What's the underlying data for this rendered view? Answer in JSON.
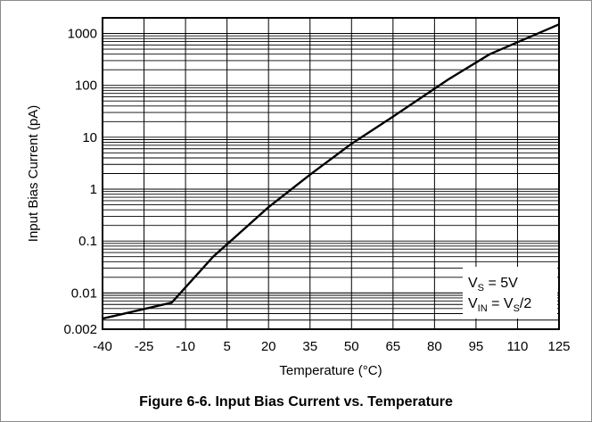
{
  "chart_data": {
    "type": "line",
    "title": "Figure 6-6. Input Bias Current vs. Temperature",
    "xlabel": "Temperature (°C)",
    "ylabel": "Input Bias Current (pA)",
    "xlim": [
      -40,
      125
    ],
    "ylim": [
      0.002,
      2000
    ],
    "y_scale": "log",
    "grid": true,
    "x_ticks": [
      -40,
      -25,
      -10,
      5,
      20,
      35,
      50,
      65,
      80,
      95,
      110,
      125
    ],
    "x_tick_labels": [
      "-40",
      "-25",
      "-10",
      "5",
      "20",
      "35",
      "50",
      "65",
      "80",
      "95",
      "110",
      "125"
    ],
    "y_ticks": [
      0.002,
      0.01,
      0.1,
      1,
      10,
      100,
      1000
    ],
    "y_tick_labels": [
      "0.002",
      "0.01",
      "0.1",
      "1",
      "10",
      "100",
      "1000"
    ],
    "series": [
      {
        "x": [
          -40,
          -15,
          0,
          20,
          35,
          50,
          65,
          85,
          100,
          125
        ],
        "y": [
          0.0032,
          0.0065,
          0.05,
          0.45,
          1.9,
          7.5,
          25,
          130,
          400,
          1500
        ],
        "color": "#000000"
      }
    ],
    "annotations": [
      {
        "parts": [
          [
            "V",
            ""
          ],
          [
            "S",
            "sub"
          ],
          [
            " = 5V",
            ""
          ]
        ]
      },
      {
        "parts": [
          [
            "V",
            ""
          ],
          [
            "IN",
            "sub"
          ],
          [
            " = V",
            ""
          ],
          [
            "S",
            "sub"
          ],
          [
            "/2",
            ""
          ]
        ]
      }
    ],
    "legend_position": "bottom-right"
  }
}
